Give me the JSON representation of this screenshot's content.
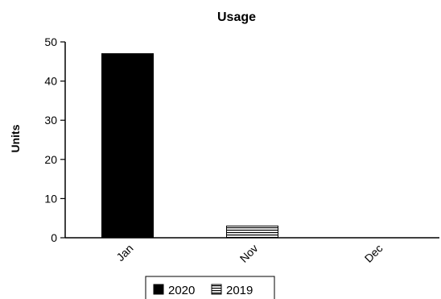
{
  "chart_data": {
    "type": "bar",
    "title": "Usage",
    "xlabel": "",
    "ylabel": "Units",
    "categories": [
      "Jan",
      "Nov",
      "Dec"
    ],
    "series": [
      {
        "name": "2020",
        "values": [
          47,
          0,
          0
        ],
        "pattern": "solid"
      },
      {
        "name": "2019",
        "values": [
          0,
          3,
          0
        ],
        "pattern": "horizontal-lines"
      }
    ],
    "ylim": [
      0,
      50
    ],
    "yticks": [
      0,
      10,
      20,
      30,
      40,
      50
    ],
    "grid": false,
    "legend_position": "bottom",
    "colors": {
      "bar": "#000000",
      "background": "#ffffff"
    }
  }
}
